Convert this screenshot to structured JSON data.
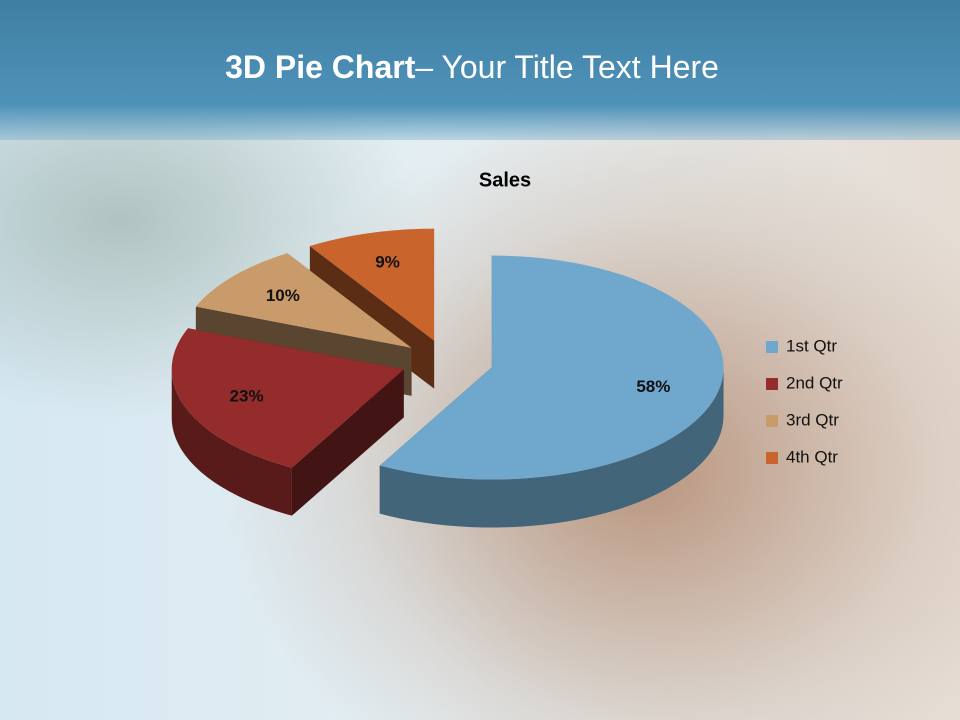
{
  "slide": {
    "title_bold": "3D Pie Chart",
    "title_rest": "– Your Title Text Here"
  },
  "chart_data": {
    "type": "pie",
    "title": "Sales",
    "categories": [
      "1st Qtr",
      "2nd Qtr",
      "3rd Qtr",
      "4th Qtr"
    ],
    "values": [
      58,
      23,
      10,
      9
    ],
    "value_labels": [
      "58%",
      "23%",
      "10%",
      "9%"
    ],
    "colors": [
      "#6fa8cc",
      "#952c2c",
      "#c99a6a",
      "#c8642c"
    ],
    "legend": "right"
  }
}
